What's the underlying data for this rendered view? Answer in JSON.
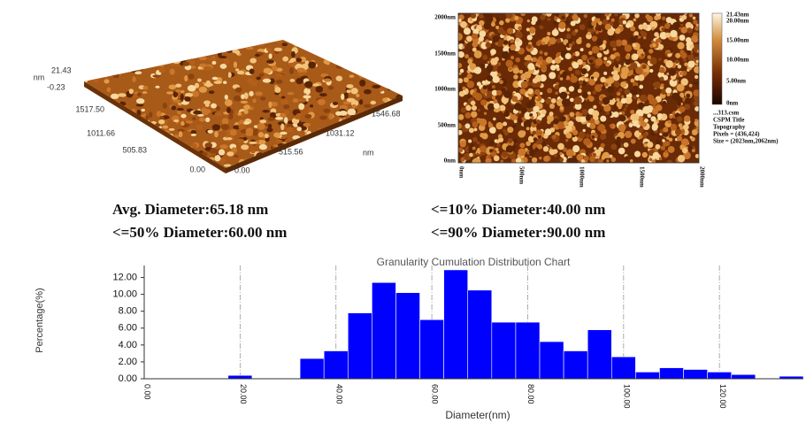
{
  "afm_3d": {
    "z_max": "21.43",
    "z_unit": "nm",
    "z_min": "-0.23",
    "left_axis": [
      "1517.50",
      "1011.66",
      "505.83",
      "0.00"
    ],
    "right_axis": [
      "0.00",
      "515.56",
      "1031.12",
      "1546.68"
    ],
    "right_unit": "nm"
  },
  "afm_2d": {
    "y_labels": [
      "2000nm",
      "1500nm",
      "1000nm",
      "500nm",
      "0nm"
    ],
    "x_labels": [
      "0nm",
      "500nm",
      "1000nm",
      "1500nm",
      "2000nm"
    ],
    "colorbar_labels": [
      "21.43nm",
      "20.00nm",
      "15.00nm",
      "10.00nm",
      "5.00nm",
      "0nm"
    ],
    "info": [
      "...313.csm",
      "CSPM Title",
      "Topography",
      "Pixels = (436,424)",
      "Size = (2023nm,2062nm)"
    ]
  },
  "stats": {
    "avg": "Avg. Diameter:65.18 nm",
    "d10": "<=10% Diameter:40.00 nm",
    "d50": "<=50% Diameter:60.00 nm",
    "d90": "<=90% Diameter:90.00 nm"
  },
  "chart_data": {
    "type": "histogram",
    "title": "Granularity Cumulation Distribution  Chart",
    "x_label": "Diameter(nm)",
    "y_label": "Percentage(%)",
    "color": "#0000ff",
    "bins": [
      17.5,
      22.5,
      27.5,
      32.5,
      37.5,
      42.5,
      47.5,
      52.5,
      57.5,
      62.5,
      67.5,
      72.5,
      77.5,
      82.5,
      87.5,
      92.5,
      97.5,
      102.5,
      107.5,
      112.5,
      117.5,
      122.5,
      127.5,
      132.5,
      137.5
    ],
    "values": [
      0.4,
      0,
      0,
      2.4,
      3.3,
      7.8,
      11.4,
      10.2,
      7.0,
      12.9,
      10.5,
      6.7,
      6.7,
      4.4,
      3.3,
      5.8,
      2.6,
      0.8,
      1.3,
      1.1,
      0.8,
      0.5,
      0,
      0.3
    ],
    "xlim": [
      0,
      137.5
    ],
    "ylim": [
      0,
      13
    ],
    "xticks": [
      {
        "value": 0,
        "label": "0.00"
      },
      {
        "value": 20,
        "label": "20.00"
      },
      {
        "value": 40,
        "label": "40.00"
      },
      {
        "value": 60,
        "label": "60.00"
      },
      {
        "value": 80,
        "label": "80.00"
      },
      {
        "value": 100,
        "label": "100.00"
      },
      {
        "value": 120,
        "label": "120.00"
      }
    ],
    "yticks": [
      {
        "value": 0,
        "label": "0.00"
      },
      {
        "value": 2,
        "label": "2.00"
      },
      {
        "value": 4,
        "label": "4.00"
      },
      {
        "value": 6,
        "label": "6.00"
      },
      {
        "value": 8,
        "label": "8.00"
      },
      {
        "value": 10,
        "label": "10.00"
      },
      {
        "value": 12,
        "label": "12.00"
      }
    ],
    "grid": "x"
  }
}
